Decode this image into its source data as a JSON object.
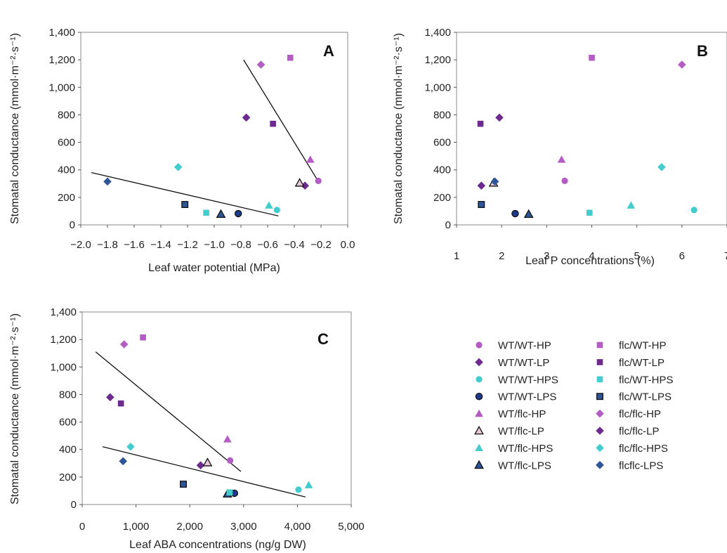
{
  "legend": [
    {
      "label": "WT/WT-HP",
      "color": "#b35cc4",
      "marker": "circle",
      "dark": false
    },
    {
      "label": "WT/WT-LP",
      "color": "#6b2a8c",
      "marker": "diamond",
      "dark": false
    },
    {
      "label": "WT/WT-HPS",
      "color": "#44cccc",
      "marker": "circle",
      "dark": false
    },
    {
      "label": "WT/WT-LPS",
      "color": "#1e3a8a",
      "marker": "circle",
      "dark": true
    },
    {
      "label": "WT/flc-HP",
      "color": "#b35cc4",
      "marker": "triangle",
      "dark": false
    },
    {
      "label": "WT/flc-LP",
      "color": "#e6c8d8",
      "marker": "triangle",
      "dark": true
    },
    {
      "label": "WT/flc-HPS",
      "color": "#44cccc",
      "marker": "triangle",
      "dark": false
    },
    {
      "label": "WT/flc-LPS",
      "color": "#2f5597",
      "marker": "triangle",
      "dark": true
    },
    {
      "label": "flc/WT-HP",
      "color": "#b35cc4",
      "marker": "square",
      "dark": false
    },
    {
      "label": "flc/WT-LP",
      "color": "#6b2a8c",
      "marker": "square",
      "dark": false
    },
    {
      "label": "flc/WT-HPS",
      "color": "#44cccc",
      "marker": "square",
      "dark": false
    },
    {
      "label": "flc/WT-LPS",
      "color": "#2f5597",
      "marker": "square",
      "dark": true
    },
    {
      "label": "flc/flc-HP",
      "color": "#b35cc4",
      "marker": "diamond",
      "dark": false
    },
    {
      "label": "flc/flc-LP",
      "color": "#6b2a8c",
      "marker": "diamond",
      "dark": false
    },
    {
      "label": "flc/flc-HPS",
      "color": "#44cccc",
      "marker": "diamond",
      "dark": false
    },
    {
      "label": "flcflc-LPS",
      "color": "#2f5597",
      "marker": "diamond",
      "dark": false
    }
  ],
  "chart_data": [
    {
      "type": "scatter",
      "panel": "A",
      "xlabel": "Leaf water potential (MPa)",
      "ylabel": "Stomatal conductance  (mmol·m⁻²·s⁻¹)",
      "xlim": [
        -2.0,
        0.0
      ],
      "ylim": [
        0,
        1400
      ],
      "xticks": [
        -2.0,
        -1.8,
        -1.6,
        -1.4,
        -1.2,
        -1.0,
        -0.8,
        -0.6,
        -0.4,
        -0.2,
        0.0
      ],
      "xtick_labels": [
        "−2.0",
        "−1.8",
        "−1.6",
        "−1.4",
        "−1.2",
        "−1.0",
        "−0.8",
        "−0.6",
        "−0.4",
        "−0.2",
        "0.0"
      ],
      "yticks": [
        0,
        200,
        400,
        600,
        800,
        1000,
        1200,
        1400
      ],
      "ytick_labels": [
        "0",
        "200",
        "400",
        "600",
        "800",
        "1,000",
        "1,200",
        "1,400"
      ],
      "points": [
        {
          "series": "WT/WT-HP",
          "x": -0.22,
          "y": 320
        },
        {
          "series": "WT/WT-LP",
          "x": -0.32,
          "y": 285
        },
        {
          "series": "WT/WT-HPS",
          "x": -0.53,
          "y": 108
        },
        {
          "series": "WT/WT-LPS",
          "x": -0.82,
          "y": 82
        },
        {
          "series": "WT/flc-HP",
          "x": -0.28,
          "y": 475
        },
        {
          "series": "WT/flc-LP",
          "x": -0.36,
          "y": 305
        },
        {
          "series": "WT/flc-HPS",
          "x": -0.59,
          "y": 142
        },
        {
          "series": "WT/flc-LPS",
          "x": -0.95,
          "y": 78
        },
        {
          "series": "flc/WT-HP",
          "x": -0.43,
          "y": 1215
        },
        {
          "series": "flc/WT-LP",
          "x": -0.56,
          "y": 735
        },
        {
          "series": "flc/WT-HPS",
          "x": -1.06,
          "y": 88
        },
        {
          "series": "flc/WT-LPS",
          "x": -1.22,
          "y": 148
        },
        {
          "series": "flc/flc-HP",
          "x": -0.65,
          "y": 1165
        },
        {
          "series": "flc/flc-LP",
          "x": -0.76,
          "y": 780
        },
        {
          "series": "flc/flc-HPS",
          "x": -1.27,
          "y": 420
        },
        {
          "series": "flcflc-LPS",
          "x": -1.8,
          "y": 315
        }
      ],
      "lines": [
        {
          "x1": -0.78,
          "y1": 1200,
          "x2": -0.21,
          "y2": 300
        },
        {
          "x1": -1.92,
          "y1": 380,
          "x2": -0.52,
          "y2": 65
        }
      ]
    },
    {
      "type": "scatter",
      "panel": "B",
      "xlabel": "Leaf P concentrations (%)",
      "ylabel": "Stomatal conductance  (mmol·m⁻²·s⁻¹)",
      "xlim": [
        1,
        7
      ],
      "ylim": [
        0,
        1400
      ],
      "xticks": [
        1,
        2,
        3,
        4,
        5,
        6,
        7
      ],
      "xtick_labels": [
        "1",
        "2",
        "3",
        "4",
        "5",
        "6",
        "7"
      ],
      "yticks": [
        0,
        200,
        400,
        600,
        800,
        1000,
        1200,
        1400
      ],
      "ytick_labels": [
        "0",
        "200",
        "400",
        "600",
        "800",
        "1,000",
        "1,200",
        "1,400"
      ],
      "points": [
        {
          "series": "WT/WT-HP",
          "x": 3.4,
          "y": 320
        },
        {
          "series": "WT/WT-LP",
          "x": 1.55,
          "y": 285
        },
        {
          "series": "WT/WT-HPS",
          "x": 6.27,
          "y": 108
        },
        {
          "series": "WT/WT-LPS",
          "x": 2.3,
          "y": 82
        },
        {
          "series": "WT/flc-HP",
          "x": 3.33,
          "y": 475
        },
        {
          "series": "WT/flc-LP",
          "x": 1.82,
          "y": 305
        },
        {
          "series": "WT/flc-HPS",
          "x": 4.87,
          "y": 142
        },
        {
          "series": "WT/flc-LPS",
          "x": 2.6,
          "y": 78
        },
        {
          "series": "flc/WT-HP",
          "x": 4.0,
          "y": 1215
        },
        {
          "series": "flc/WT-LP",
          "x": 1.53,
          "y": 735
        },
        {
          "series": "flc/WT-HPS",
          "x": 3.95,
          "y": 88
        },
        {
          "series": "flc/WT-LPS",
          "x": 1.55,
          "y": 148
        },
        {
          "series": "flc/flc-HP",
          "x": 6.0,
          "y": 1165
        },
        {
          "series": "flc/flc-LP",
          "x": 1.95,
          "y": 780
        },
        {
          "series": "flc/flc-HPS",
          "x": 5.55,
          "y": 420
        },
        {
          "series": "flcflc-LPS",
          "x": 1.85,
          "y": 315
        }
      ],
      "lines": []
    },
    {
      "type": "scatter",
      "panel": "C",
      "xlabel": "Leaf ABA concentrations (ng/g DW)",
      "ylabel": "Stomatal conductance  (mmol·m⁻²·s⁻¹)",
      "xlim": [
        0,
        5000
      ],
      "ylim": [
        0,
        1400
      ],
      "xticks": [
        0,
        1000,
        2000,
        3000,
        4000,
        5000
      ],
      "xtick_labels": [
        "0",
        "1,000",
        "2,000",
        "3,000",
        "4,000",
        "5,000"
      ],
      "yticks": [
        0,
        200,
        400,
        600,
        800,
        1000,
        1200,
        1400
      ],
      "ytick_labels": [
        "0",
        "200",
        "400",
        "600",
        "800",
        "1,000",
        "1,200",
        "1,400"
      ],
      "points": [
        {
          "series": "WT/WT-HP",
          "x": 2750,
          "y": 320
        },
        {
          "series": "WT/WT-LP",
          "x": 2200,
          "y": 285
        },
        {
          "series": "WT/WT-HPS",
          "x": 4020,
          "y": 108
        },
        {
          "series": "WT/WT-LPS",
          "x": 2830,
          "y": 82
        },
        {
          "series": "WT/flc-HP",
          "x": 2700,
          "y": 475
        },
        {
          "series": "WT/flc-LP",
          "x": 2330,
          "y": 305
        },
        {
          "series": "WT/flc-HPS",
          "x": 4210,
          "y": 142
        },
        {
          "series": "WT/flc-LPS",
          "x": 2700,
          "y": 78
        },
        {
          "series": "flc/WT-HP",
          "x": 1130,
          "y": 1215
        },
        {
          "series": "flc/WT-LP",
          "x": 720,
          "y": 735
        },
        {
          "series": "flc/WT-HPS",
          "x": 2740,
          "y": 88
        },
        {
          "series": "flc/WT-LPS",
          "x": 1880,
          "y": 148
        },
        {
          "series": "flc/flc-HP",
          "x": 780,
          "y": 1165
        },
        {
          "series": "flc/flc-LP",
          "x": 520,
          "y": 780
        },
        {
          "series": "flc/flc-HPS",
          "x": 900,
          "y": 420
        },
        {
          "series": "flcflc-LPS",
          "x": 760,
          "y": 315
        }
      ],
      "lines": [
        {
          "x1": 250,
          "y1": 1110,
          "x2": 2950,
          "y2": 240
        },
        {
          "x1": 380,
          "y1": 420,
          "x2": 4150,
          "y2": 55
        }
      ]
    }
  ]
}
